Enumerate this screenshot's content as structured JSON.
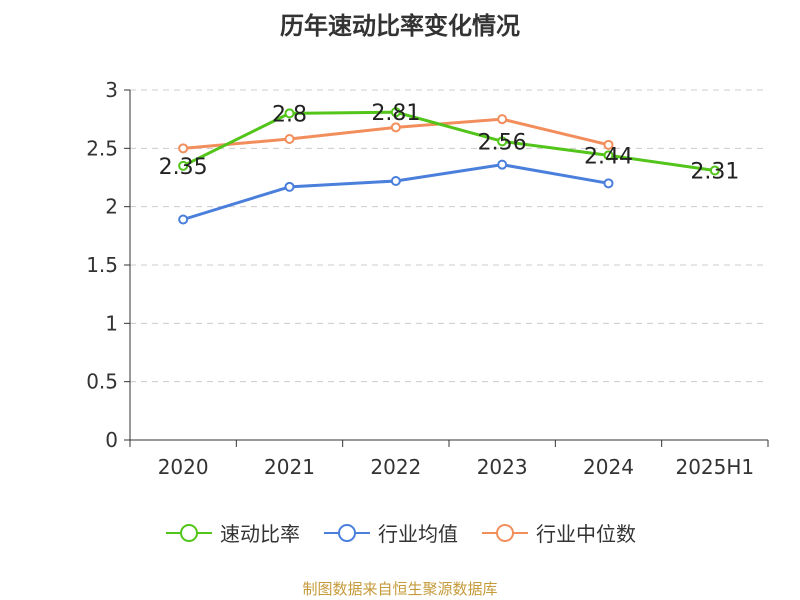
{
  "title": "历年速动比率变化情况",
  "source": "制图数据来自恒生聚源数据库",
  "chart_data": {
    "type": "line",
    "title": "历年速动比率变化情况",
    "categories": [
      "2020",
      "2021",
      "2022",
      "2023",
      "2024",
      "2025H1"
    ],
    "ylim": [
      0,
      3
    ],
    "yticks": [
      "0",
      "0.5",
      "1",
      "1.5",
      "2",
      "2.5",
      "3"
    ],
    "grid": true,
    "legend_position": "bottom",
    "series": [
      {
        "name": "速动比率",
        "color": "#52c41a",
        "values": [
          2.35,
          2.8,
          2.81,
          2.56,
          2.44,
          2.31
        ],
        "labels": [
          "2.35",
          "2.8",
          "2.81",
          "2.56",
          "2.44",
          "2.31"
        ]
      },
      {
        "name": "行业均值",
        "color": "#4a7fdb",
        "values": [
          1.89,
          2.17,
          2.22,
          2.36,
          2.2,
          null
        ]
      },
      {
        "name": "行业中位数",
        "color": "#f28e5c",
        "values": [
          2.5,
          2.58,
          2.68,
          2.75,
          2.53,
          null
        ]
      }
    ]
  }
}
